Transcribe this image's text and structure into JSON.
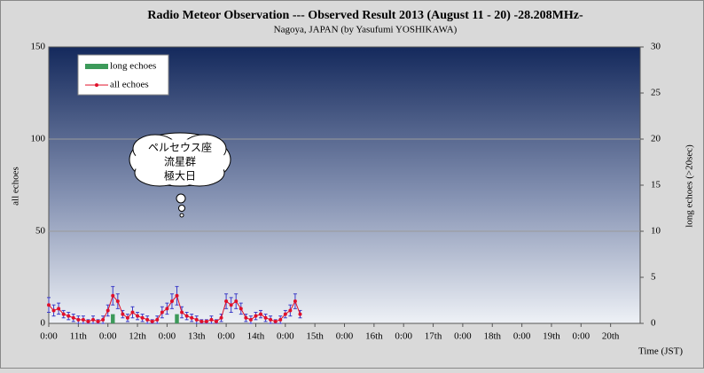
{
  "chart_data": {
    "type": "line",
    "title": "Radio Meteor Observation  ---  Observed Result 2013 (August 11 - 20)  -28.208MHz-",
    "subtitle": "Nagoya, JAPAN (by Yasufumi YOSHIKAWA)",
    "x_label": "Time (JST)",
    "y_label": "all echoes",
    "y2_label": "long echoes (>20sec)",
    "annotation": [
      "ペルセウス座",
      "流星群",
      "極大日"
    ],
    "xlim": [
      0,
      240
    ],
    "xticks": [
      {
        "value": 0,
        "label": "0:00"
      },
      {
        "value": 12,
        "label": "11th"
      },
      {
        "value": 24,
        "label": "0:00"
      },
      {
        "value": 36,
        "label": "12th"
      },
      {
        "value": 48,
        "label": "0:00"
      },
      {
        "value": 60,
        "label": "13th"
      },
      {
        "value": 72,
        "label": "0:00"
      },
      {
        "value": 84,
        "label": "14th"
      },
      {
        "value": 96,
        "label": "0:00"
      },
      {
        "value": 108,
        "label": "15th"
      },
      {
        "value": 120,
        "label": "0:00"
      },
      {
        "value": 132,
        "label": "16th"
      },
      {
        "value": 144,
        "label": "0:00"
      },
      {
        "value": 156,
        "label": "17th"
      },
      {
        "value": 168,
        "label": "0:00"
      },
      {
        "value": 180,
        "label": "18th"
      },
      {
        "value": 192,
        "label": "0:00"
      },
      {
        "value": 204,
        "label": "19th"
      },
      {
        "value": 216,
        "label": "0:00"
      },
      {
        "value": 228,
        "label": "20th"
      }
    ],
    "ylim": [
      0,
      150
    ],
    "yticks": [
      0,
      50,
      100,
      150
    ],
    "y2lim": [
      0,
      30
    ],
    "y2ticks": [
      0,
      5,
      10,
      15,
      20,
      25,
      30
    ],
    "grid": true,
    "legend": "upper left",
    "error_color": "#3c3cc8",
    "x": [
      0,
      2,
      4,
      6,
      8,
      10,
      12,
      14,
      16,
      18,
      20,
      22,
      24,
      26,
      28,
      30,
      32,
      34,
      36,
      38,
      40,
      42,
      44,
      46,
      48,
      50,
      52,
      54,
      56,
      58,
      60,
      62,
      64,
      66,
      68,
      70,
      72,
      74,
      76,
      78,
      80,
      82,
      84,
      86,
      88,
      90,
      92,
      94,
      96,
      98,
      100,
      102
    ],
    "series": [
      {
        "name": "long echoes",
        "color": "#3c9a5a",
        "axis": "y2",
        "kind": "bar",
        "values": [
          0,
          0,
          0,
          0,
          0,
          0,
          0,
          0,
          0,
          0,
          0,
          0,
          0,
          1,
          0,
          0,
          0,
          0,
          0,
          0,
          0,
          0,
          0,
          0,
          0,
          0,
          1,
          0,
          0,
          0,
          0,
          0,
          0,
          0,
          0,
          0,
          0,
          0,
          0,
          0,
          0,
          0,
          0,
          0,
          0,
          0,
          0,
          0,
          0,
          0,
          0,
          0
        ]
      },
      {
        "name": "all echoes",
        "color": "#e0102a",
        "kind": "line",
        "values": [
          10,
          7,
          8,
          5,
          4,
          3,
          2,
          2,
          1,
          2,
          1,
          2,
          7,
          15,
          12,
          5,
          3,
          6,
          4,
          3,
          2,
          1,
          2,
          6,
          8,
          12,
          15,
          6,
          4,
          3,
          2,
          1,
          1,
          2,
          1,
          3,
          12,
          10,
          12,
          8,
          3,
          2,
          4,
          5,
          3,
          2,
          1,
          2,
          5,
          7,
          12,
          5
        ],
        "errors": [
          4,
          3,
          3,
          2,
          2,
          2,
          2,
          2,
          1,
          2,
          1,
          2,
          3,
          5,
          4,
          2,
          2,
          3,
          2,
          2,
          2,
          1,
          2,
          3,
          3,
          4,
          5,
          3,
          2,
          2,
          2,
          1,
          1,
          2,
          1,
          2,
          4,
          4,
          4,
          3,
          2,
          2,
          2,
          2,
          2,
          2,
          1,
          2,
          2,
          3,
          4,
          2
        ]
      }
    ]
  }
}
